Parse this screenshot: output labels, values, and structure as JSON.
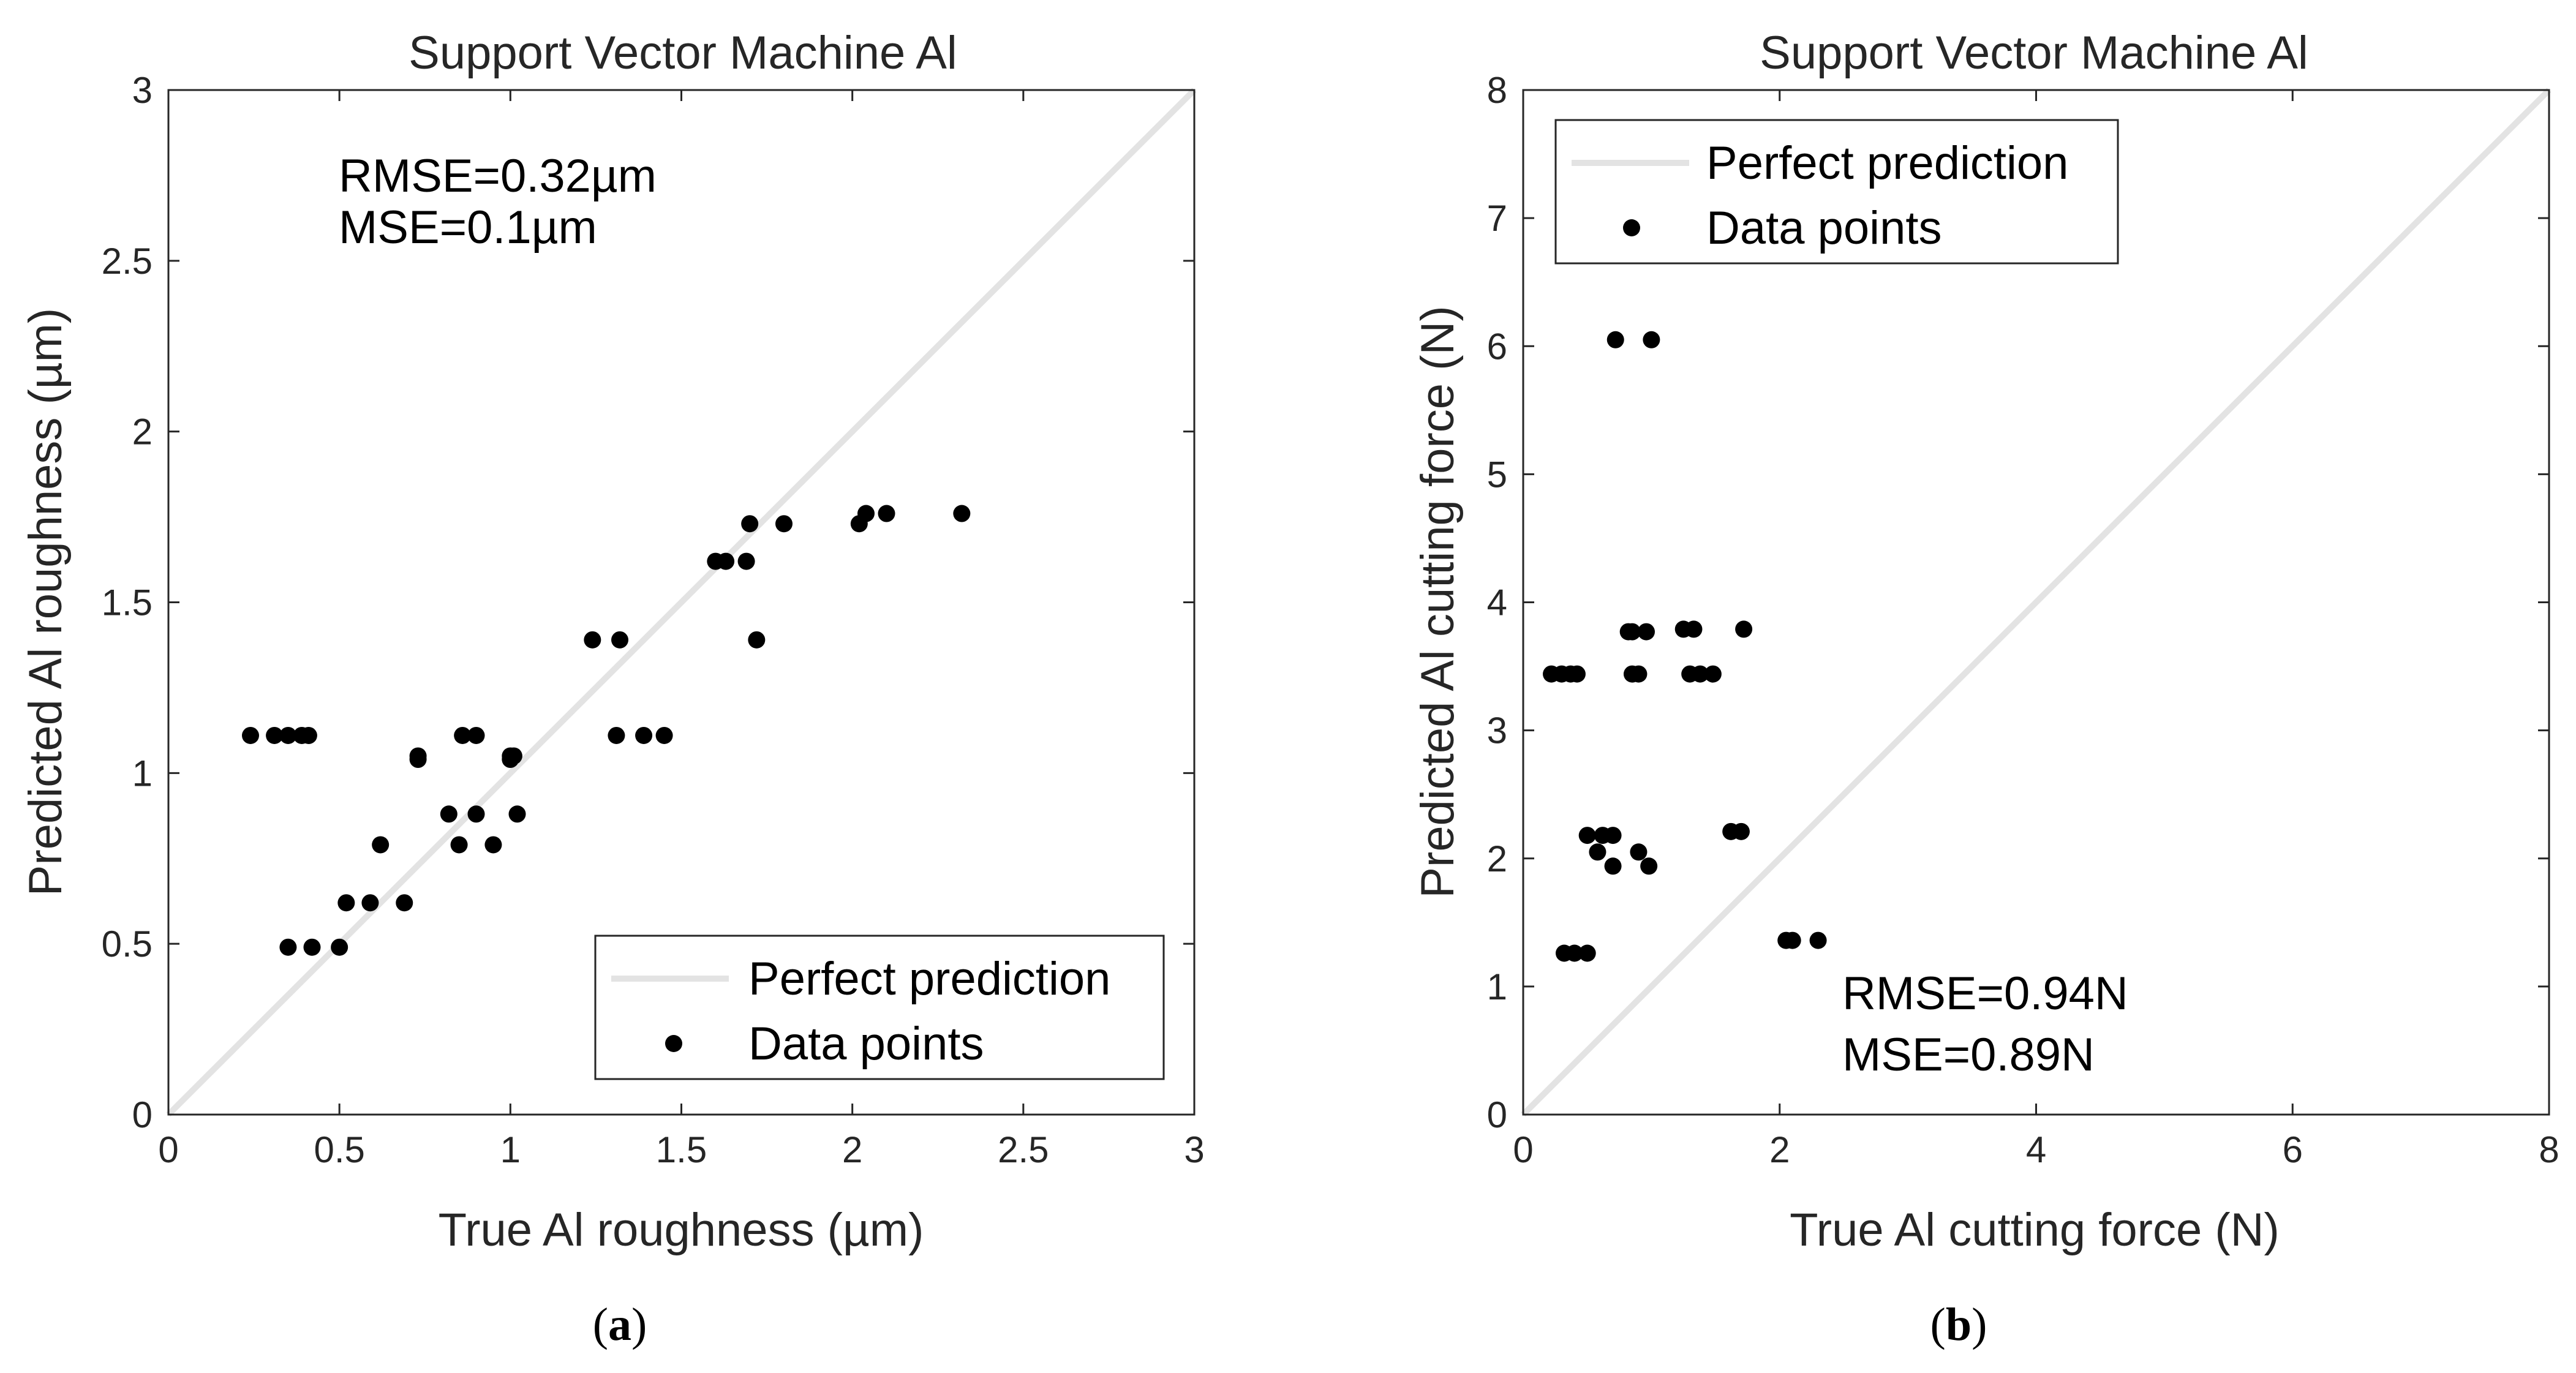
{
  "chart_data": [
    {
      "type": "scatter",
      "panel_label": "a",
      "title": "Support Vector Machine Al",
      "xlabel": "True Al roughness (µm)",
      "ylabel": "Predicted Al roughness (µm)",
      "xlim": [
        0,
        3
      ],
      "ylim": [
        0,
        3
      ],
      "xticks": [
        0,
        0.5,
        1,
        1.5,
        2,
        2.5,
        3
      ],
      "yticks": [
        0,
        0.5,
        1,
        1.5,
        2,
        2.5,
        3
      ],
      "xtick_labels": [
        "0",
        "0.5",
        "1",
        "1.5",
        "2",
        "2.5",
        "3"
      ],
      "ytick_labels": [
        "0",
        "0.5",
        "1",
        "1.5",
        "2",
        "2.5",
        "3"
      ],
      "legend_position": "bottom-right",
      "annotation_position": "top-left",
      "annotations": [
        "RMSE=0.32µm",
        "MSE=0.1µm"
      ],
      "series": [
        {
          "name": "Perfect prediction",
          "kind": "line",
          "color": "#e3e3e3",
          "x": [
            0,
            3
          ],
          "y": [
            0,
            3
          ]
        },
        {
          "name": "Data points",
          "kind": "markers",
          "color": "#000000",
          "x": [
            0.24,
            0.31,
            0.35,
            0.39,
            0.41,
            0.35,
            0.42,
            0.5,
            0.52,
            0.59,
            0.62,
            0.69,
            0.73,
            0.73,
            0.82,
            0.85,
            0.86,
            0.9,
            0.9,
            0.95,
            1.0,
            1.0,
            1.01,
            1.02,
            1.24,
            1.31,
            1.32,
            1.39,
            1.45,
            1.6,
            1.63,
            1.69,
            1.7,
            1.72,
            1.8,
            2.02,
            2.04,
            2.1,
            2.32
          ],
          "y": [
            1.11,
            1.11,
            1.11,
            1.11,
            1.11,
            0.49,
            0.49,
            0.49,
            0.62,
            0.62,
            0.79,
            0.62,
            1.04,
            1.05,
            0.88,
            0.79,
            1.11,
            1.11,
            0.88,
            0.79,
            1.04,
            1.05,
            1.05,
            0.88,
            1.39,
            1.11,
            1.39,
            1.11,
            1.11,
            1.62,
            1.62,
            1.62,
            1.73,
            1.39,
            1.73,
            1.73,
            1.76,
            1.76,
            1.76
          ]
        }
      ]
    },
    {
      "type": "scatter",
      "panel_label": "b",
      "title": "Support Vector Machine Al",
      "xlabel": "True Al cutting force (N)",
      "ylabel": "Predicted Al cutting force (N)",
      "xlim": [
        0,
        8
      ],
      "ylim": [
        0,
        8
      ],
      "xticks": [
        0,
        2,
        4,
        6,
        8
      ],
      "yticks": [
        0,
        1,
        2,
        3,
        4,
        5,
        6,
        7,
        8
      ],
      "xtick_labels": [
        "0",
        "2",
        "4",
        "6",
        "8"
      ],
      "ytick_labels": [
        "0",
        "1",
        "2",
        "3",
        "4",
        "5",
        "6",
        "7",
        "8"
      ],
      "legend_position": "top-left",
      "annotation_position": "bottom-right",
      "annotations": [
        "RMSE=0.94N",
        "MSE=0.89N"
      ],
      "series": [
        {
          "name": "Perfect prediction",
          "kind": "line",
          "color": "#e3e3e3",
          "x": [
            0,
            8
          ],
          "y": [
            0,
            8
          ]
        },
        {
          "name": "Data points",
          "kind": "markers",
          "color": "#000000",
          "x": [
            0.22,
            0.3,
            0.37,
            0.42,
            0.32,
            0.4,
            0.5,
            0.5,
            0.58,
            0.62,
            0.7,
            0.7,
            0.72,
            0.82,
            0.85,
            0.9,
            0.96,
            0.98,
            1.0,
            0.85,
            0.9,
            1.25,
            1.33,
            1.3,
            1.38,
            1.48,
            1.72,
            1.62,
            1.7,
            2.05,
            2.1,
            2.3
          ],
          "y": [
            3.44,
            3.44,
            3.44,
            3.44,
            1.26,
            1.26,
            1.26,
            2.18,
            2.05,
            2.18,
            2.18,
            1.94,
            6.05,
            3.77,
            3.77,
            2.05,
            3.77,
            1.94,
            6.05,
            3.44,
            3.44,
            3.79,
            3.79,
            3.44,
            3.44,
            3.44,
            3.79,
            2.21,
            2.21,
            1.36,
            1.36,
            1.36
          ]
        }
      ]
    }
  ]
}
